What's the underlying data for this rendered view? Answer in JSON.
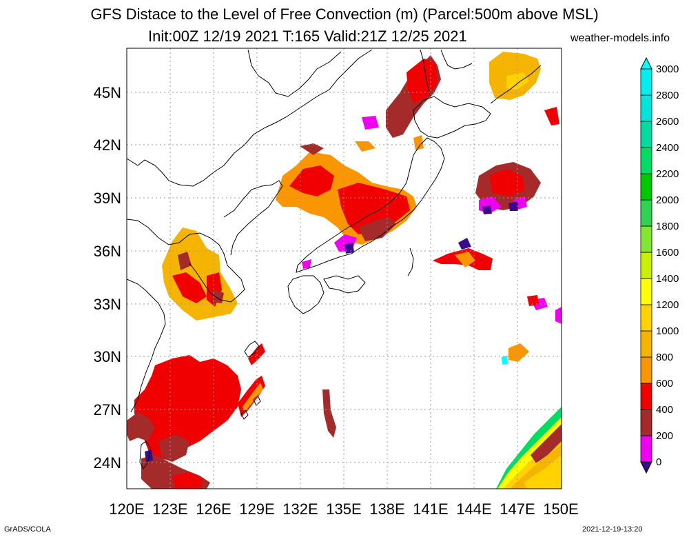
{
  "title": {
    "line1": "GFS Distace to the Level of Free Convection (m) (Parcel:500m above MSL)",
    "line2": "Init:00Z 12/19 2021 T:165 Valid:21Z 12/25 2021",
    "site": "weather-models.info"
  },
  "footer": {
    "left": "GrADS/COLA",
    "right": "2021-12-19-13:20"
  },
  "map": {
    "region": "East Asia / Japan",
    "lon_range": [
      120,
      150
    ],
    "lat_range": [
      22.5,
      47.5
    ],
    "lon_ticks": [
      "120E",
      "123E",
      "126E",
      "129E",
      "132E",
      "135E",
      "138E",
      "141E",
      "144E",
      "147E",
      "150E"
    ],
    "lat_ticks": [
      "24N",
      "27N",
      "30N",
      "33N",
      "36N",
      "39N",
      "42N",
      "45N"
    ],
    "grid": true
  },
  "colorbar": {
    "labels": [
      "0",
      "200",
      "400",
      "600",
      "800",
      "1000",
      "1200",
      "1400",
      "1600",
      "1800",
      "2000",
      "2200",
      "2400",
      "2600",
      "2800",
      "3000"
    ],
    "colors": [
      "#3a0a8c",
      "#f000f0",
      "#a52a2a",
      "#f00000",
      "#fa9600",
      "#f5b400",
      "#ffd200",
      "#ffff00",
      "#c8f000",
      "#82e632",
      "#32d250",
      "#00c800",
      "#00dc64",
      "#00dca0",
      "#00e6dc",
      "#00f0f0",
      "#00ffff"
    ]
  }
}
